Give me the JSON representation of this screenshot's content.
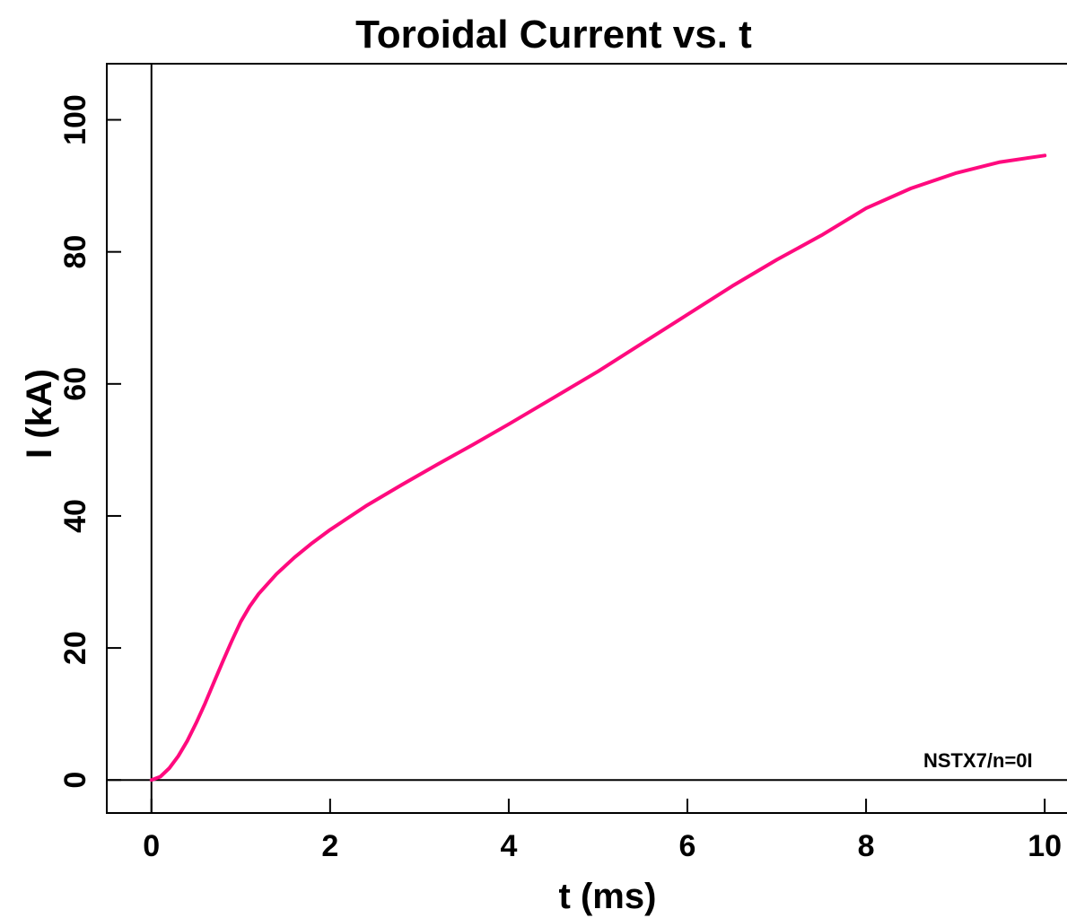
{
  "chart_data": {
    "type": "line",
    "title": "Toroidal Current vs. t",
    "xlabel": "t (ms)",
    "ylabel": "I (kA)",
    "xlim": [
      -0.5,
      10.35
    ],
    "ylim": [
      -5,
      108.5
    ],
    "xticks": [
      0,
      2,
      4,
      6,
      8,
      10
    ],
    "yticks": [
      0,
      20,
      40,
      60,
      80,
      100
    ],
    "annotation": "NSTX7/n=0I",
    "colors": {
      "line": "#ff0a7e",
      "axes": "#000000"
    },
    "grid": false,
    "zero_lines": true,
    "series": [
      {
        "x": [
          0,
          0.1,
          0.2,
          0.3,
          0.4,
          0.5,
          0.6,
          0.7,
          0.8,
          0.9,
          1.0,
          1.1,
          1.2,
          1.4,
          1.6,
          1.8,
          2.0,
          2.4,
          2.8,
          3.2,
          3.6,
          4.0,
          4.5,
          5.0,
          5.5,
          6.0,
          6.5,
          7.0,
          7.5,
          8.0,
          8.5,
          9.0,
          9.5,
          10.0
        ],
        "y": [
          0,
          0.5,
          1.8,
          3.6,
          5.9,
          8.6,
          11.6,
          14.8,
          18.0,
          21.1,
          24.0,
          26.3,
          28.2,
          31.2,
          33.7,
          35.9,
          37.9,
          41.5,
          44.7,
          47.8,
          50.8,
          53.9,
          57.9,
          61.9,
          66.2,
          70.5,
          74.8,
          78.8,
          82.5,
          86.6,
          89.6,
          91.9,
          93.6,
          94.6
        ]
      }
    ]
  }
}
